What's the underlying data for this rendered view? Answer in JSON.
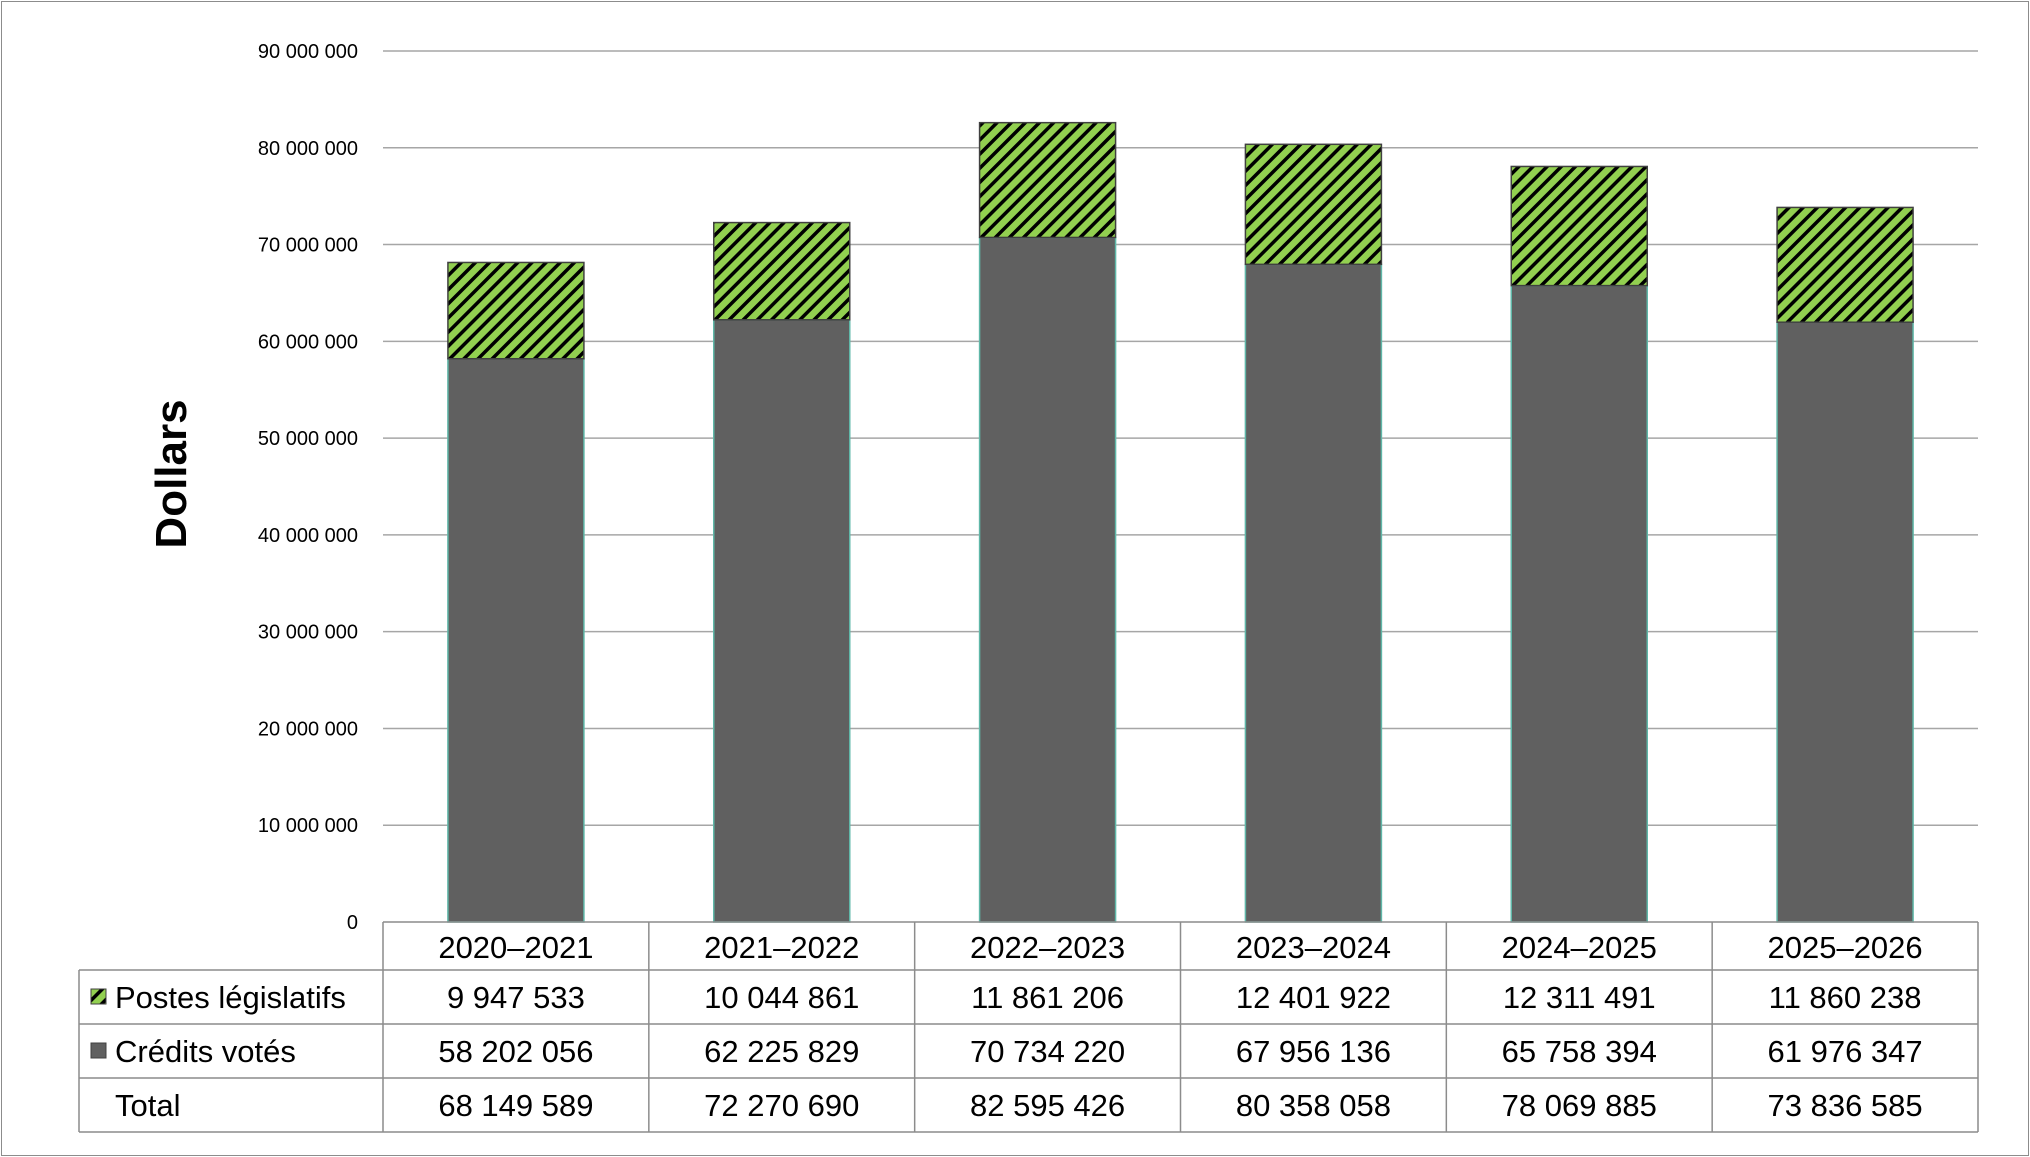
{
  "chart_data": {
    "type": "bar",
    "stacked": true,
    "ylabel": "Dollars",
    "ylim": [
      0,
      90000000
    ],
    "yticks": [
      "0",
      "10 000 000",
      "20 000 000",
      "30 000 000",
      "40 000 000",
      "50 000 000",
      "60 000 000",
      "70 000 000",
      "80 000 000",
      "90 000 000"
    ],
    "categories": [
      "2020–2021",
      "2021–2022",
      "2022–2023",
      "2023–2024",
      "2024–2025",
      "2025–2026"
    ],
    "grid": true,
    "legend": "data-table",
    "series": [
      {
        "name": "Postes législatifs",
        "color": "#92d050",
        "pattern": "diagonal-hatch",
        "values": [
          9947533,
          10044861,
          11861206,
          12401922,
          12311491,
          11860238
        ],
        "labels": [
          "9 947 533",
          "10 044 861",
          "11 861 206",
          "12 401 922",
          "12 311 491",
          "11 860 238"
        ]
      },
      {
        "name": "Crédits votés",
        "color": "#606060",
        "values": [
          58202056,
          62225829,
          70734220,
          67956136,
          65758394,
          61976347
        ],
        "labels": [
          "58 202 056",
          "62 225 829",
          "70 734 220",
          "67 956 136",
          "65 758 394",
          "61 976 347"
        ]
      }
    ],
    "total": {
      "name": "Total",
      "values": [
        68149589,
        72270690,
        82595426,
        80358058,
        78069885,
        73836585
      ],
      "labels": [
        "68 149 589",
        "72 270 690",
        "82 595 426",
        "80 358 058",
        "78 069 885",
        "73 836 585"
      ]
    }
  }
}
